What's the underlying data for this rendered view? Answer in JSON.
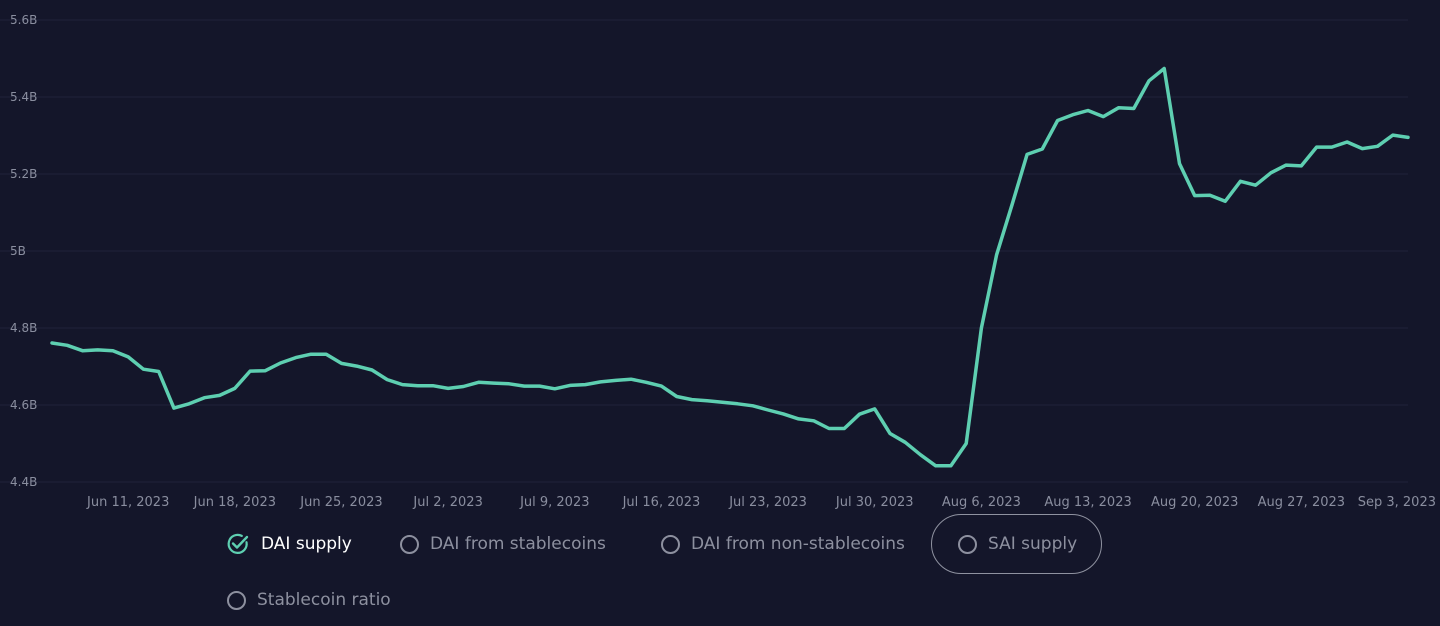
{
  "chart_data": {
    "type": "line",
    "series": [
      {
        "name": "DAI supply",
        "color": "#5ecfb1",
        "values": [
          4.761,
          4.755,
          4.741,
          4.743,
          4.741,
          4.725,
          4.693,
          4.687,
          4.592,
          4.603,
          4.619,
          4.625,
          4.643,
          4.688,
          4.689,
          4.709,
          4.723,
          4.732,
          4.732,
          4.708,
          4.701,
          4.691,
          4.666,
          4.653,
          4.65,
          4.65,
          4.643,
          4.648,
          4.659,
          4.657,
          4.655,
          4.649,
          4.649,
          4.642,
          4.651,
          4.653,
          4.66,
          4.664,
          4.667,
          4.659,
          4.649,
          4.622,
          4.614,
          4.611,
          4.607,
          4.603,
          4.598,
          4.587,
          4.577,
          4.564,
          4.559,
          4.539,
          4.539,
          4.576,
          4.59,
          4.526,
          4.503,
          4.471,
          4.442,
          4.442,
          4.5,
          4.8,
          4.99,
          5.119,
          5.251,
          5.265,
          5.339,
          5.354,
          5.365,
          5.349,
          5.372,
          5.37,
          5.442,
          5.474,
          5.227,
          5.144,
          5.145,
          5.129,
          5.181,
          5.171,
          5.203,
          5.223,
          5.221,
          5.27,
          5.27,
          5.283,
          5.266,
          5.272,
          5.301,
          5.295
        ]
      }
    ],
    "x_dates": {
      "start": "2023-06-06",
      "step_days": 1
    },
    "xticks": [
      "Jun 11, 2023",
      "Jun 18, 2023",
      "Jun 25, 2023",
      "Jul 2, 2023",
      "Jul 9, 2023",
      "Jul 16, 2023",
      "Jul 23, 2023",
      "Jul 30, 2023",
      "Aug 6, 2023",
      "Aug 13, 2023",
      "Aug 20, 2023",
      "Aug 27, 2023",
      "Sep 3, 2023"
    ],
    "yticks": [
      "4.4B",
      "4.6B",
      "4.8B",
      "5B",
      "5.2B",
      "5.4B",
      "5.6B"
    ],
    "ylim": [
      4.4,
      5.6
    ],
    "xlabel": "",
    "ylabel": "",
    "grid": true
  },
  "legend": {
    "items": [
      {
        "label": "DAI supply",
        "icon": "check-circle-icon",
        "selected": true
      },
      {
        "label": "DAI from stablecoins",
        "icon": "circle-icon",
        "selected": false
      },
      {
        "label": "DAI from non-stablecoins",
        "icon": "circle-icon",
        "selected": false
      },
      {
        "label": "SAI supply",
        "icon": "circle-icon",
        "selected": false,
        "hovered": true
      },
      {
        "label": "Stablecoin ratio",
        "icon": "circle-icon",
        "selected": false
      }
    ]
  },
  "colors": {
    "background": "#14162a",
    "line": "#5ecfb1",
    "grid": "#20233a",
    "text_muted": "#8a8e9f",
    "text_active": "#ffffff"
  }
}
